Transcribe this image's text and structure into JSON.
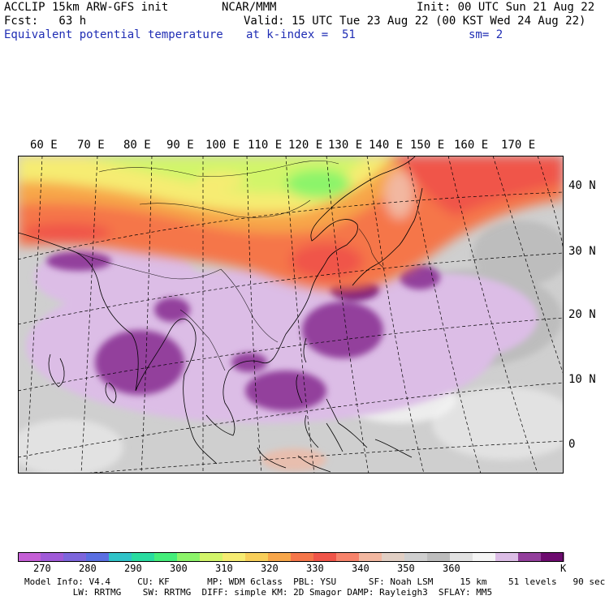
{
  "header": {
    "line1_left": "ACCLIP 15km ARW-GFS init",
    "line1_mid": "NCAR/MMM",
    "line1_right": "Init: 00 UTC Sun 21 Aug 22",
    "line2_left": "Fcst:   63 h",
    "line2_right": "Valid: 15 UTC Tue 23 Aug 22 (00 KST Wed 24 Aug 22)",
    "line3_left": "Equivalent potential temperature",
    "line3_mid": "at k-index =  51",
    "line3_right": "sm= 2"
  },
  "map": {
    "longitude_labels": [
      "60 E",
      "70 E",
      "80 E",
      "90 E",
      "100 E",
      "110 E",
      "120 E",
      "130 E",
      "140 E",
      "150 E",
      "160 E",
      "170 E"
    ],
    "latitude_labels": [
      "40 N",
      "30 N",
      "20 N",
      "10 N",
      "0"
    ]
  },
  "colorbar": {
    "unit": "K",
    "ticks": [
      "270",
      "280",
      "290",
      "300",
      "310",
      "320",
      "330",
      "340",
      "350",
      "360"
    ],
    "colors": [
      "#c55fd6",
      "#a05ad8",
      "#7d66dc",
      "#5a6fe2",
      "#2fc3c8",
      "#29dca0",
      "#44ee7a",
      "#8cf46a",
      "#d2f56a",
      "#f6ec72",
      "#f8cf5a",
      "#f7a64a",
      "#f5764a",
      "#f05549",
      "#f7836b",
      "#f2b7a0",
      "#e1cfc4",
      "#cfcfcf",
      "#bdbdbd",
      "#e2e2e2",
      "#f5f5f5",
      "#dcbde6",
      "#933f9c",
      "#6d0b6f"
    ]
  },
  "footer": {
    "line1": "Model Info: V4.4     CU: KF       MP: WDM 6class  PBL: YSU      SF: Noah LSM     15 km    51 levels   90 sec",
    "line2": "         LW: RRTMG    SW: RRTMG  DIFF: simple KM: 2D Smagor DAMP: Rayleigh3  SFLAY: MM5"
  }
}
